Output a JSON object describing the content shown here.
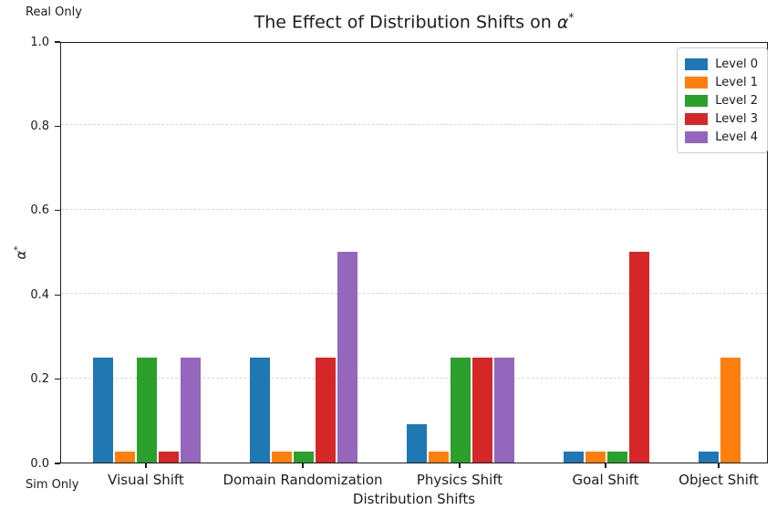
{
  "header": {
    "title_text": "The Effect of Distribution Shifts on ",
    "title_symbol": "α",
    "title_superscript": "*"
  },
  "axes": {
    "xlabel": "Distribution Shifts",
    "ylabel_symbol": "α",
    "ylabel_superscript": "*",
    "top_left_label": "Real Only",
    "bottom_left_label": "Sim Only"
  },
  "colors": {
    "spine": "#1c1c1c",
    "grid": "#d6d6d6",
    "text": "#1c1c1c",
    "legend_border": "#cccccc"
  },
  "chart_data": {
    "type": "bar",
    "title": "The Effect of Distribution Shifts on α*",
    "xlabel": "Distribution Shifts",
    "ylabel": "α*",
    "ylim": [
      0,
      1
    ],
    "yticks": [
      0.0,
      0.2,
      0.4,
      0.6,
      0.8,
      1.0
    ],
    "grid": "horizontal dashed",
    "legend_position": "upper right",
    "annotations": {
      "top_left": "Real Only",
      "bottom_left": "Sim Only"
    },
    "categories": [
      "Visual Shift",
      "Domain Randomization",
      "Physics Shift",
      "Goal Shift",
      "Object Shift"
    ],
    "series": [
      {
        "name": "Level 0",
        "color": "#1f77b4",
        "values": [
          0.25,
          0.25,
          0.09,
          0.025,
          0.025
        ]
      },
      {
        "name": "Level 1",
        "color": "#ff7f0e",
        "values": [
          0.025,
          0.025,
          0.025,
          0.025,
          0.25
        ]
      },
      {
        "name": "Level 2",
        "color": "#2ca02c",
        "values": [
          0.25,
          0.025,
          0.25,
          0.025,
          null
        ]
      },
      {
        "name": "Level 3",
        "color": "#d62728",
        "values": [
          0.025,
          0.25,
          0.25,
          0.5,
          null
        ]
      },
      {
        "name": "Level 4",
        "color": "#9467bd",
        "values": [
          0.25,
          0.5,
          0.25,
          null,
          null
        ]
      }
    ]
  }
}
